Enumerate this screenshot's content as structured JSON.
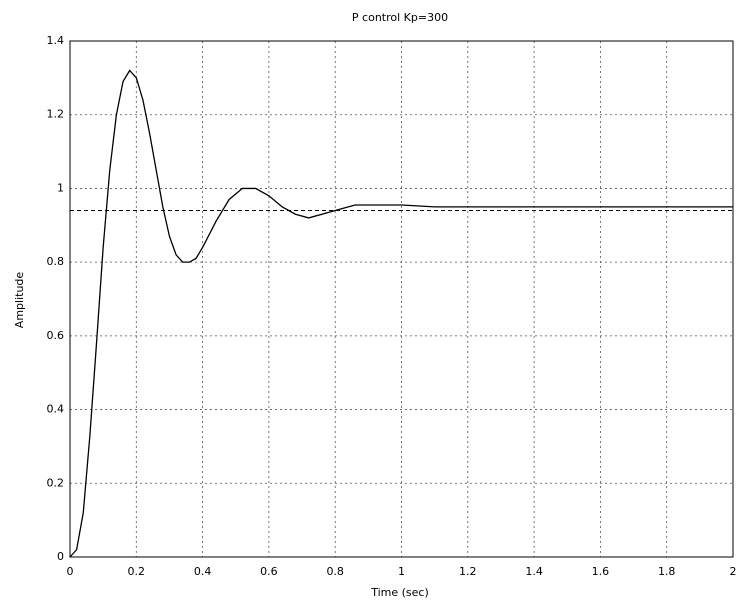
{
  "chart_data": {
    "type": "line",
    "title": "P control Kp=300",
    "x_label": "Time (sec)",
    "y_label": "Amplitude",
    "x": [
      0,
      0.02,
      0.04,
      0.06,
      0.08,
      0.1,
      0.12,
      0.14,
      0.16,
      0.18,
      0.2,
      0.22,
      0.24,
      0.26,
      0.28,
      0.3,
      0.32,
      0.34,
      0.36,
      0.38,
      0.4,
      0.44,
      0.48,
      0.52,
      0.56,
      0.6,
      0.64,
      0.68,
      0.72,
      0.76,
      0.8,
      0.86,
      0.92,
      1.0,
      1.1,
      1.2,
      1.4,
      1.6,
      1.8,
      2.0
    ],
    "series": [
      {
        "color": "#000000",
        "values": [
          0,
          0.02,
          0.12,
          0.33,
          0.58,
          0.84,
          1.05,
          1.2,
          1.29,
          1.32,
          1.3,
          1.24,
          1.15,
          1.05,
          0.95,
          0.87,
          0.82,
          0.8,
          0.8,
          0.81,
          0.84,
          0.91,
          0.97,
          1.0,
          1.0,
          0.98,
          0.95,
          0.93,
          0.92,
          0.93,
          0.94,
          0.955,
          0.955,
          0.955,
          0.95,
          0.95,
          0.95,
          0.95,
          0.95,
          0.95
        ]
      }
    ],
    "reference_line": 0.94,
    "xlim": [
      0,
      2
    ],
    "xticks": [
      0,
      0.2,
      0.4,
      0.6,
      0.8,
      1,
      1.2,
      1.4,
      1.6,
      1.8,
      2
    ],
    "ylim": [
      0,
      1.4
    ],
    "yticks": [
      0,
      0.2,
      0.4,
      0.6,
      0.8,
      1,
      1.2,
      1.4
    ],
    "grid": true
  }
}
